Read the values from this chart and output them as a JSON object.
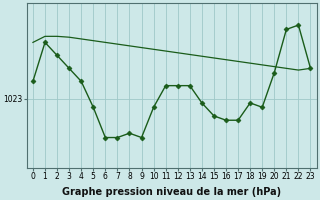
{
  "xlabel": "Graphe pression niveau de la mer (hPa)",
  "ylabel": "",
  "bg_color": "#cde8e8",
  "plot_bg_color": "#cde8e8",
  "grid_color": "#9fc8c8",
  "line_color": "#1a5c1a",
  "line_color2": "#1a5c1a",
  "marker": "D",
  "marker_size": 2.5,
  "x": [
    0,
    1,
    2,
    3,
    4,
    5,
    6,
    7,
    8,
    9,
    10,
    11,
    12,
    13,
    14,
    15,
    16,
    17,
    18,
    19,
    20,
    21,
    22,
    23
  ],
  "y_main": [
    1025.0,
    1029.5,
    1028.0,
    1026.5,
    1025.0,
    1022.0,
    1018.5,
    1018.5,
    1019.0,
    1018.5,
    1022.0,
    1024.5,
    1024.5,
    1024.5,
    1022.5,
    1021.0,
    1020.5,
    1020.5,
    1022.5,
    1022.0,
    1026.0,
    1031.0,
    1031.5,
    1026.5
  ],
  "y_trend": [
    1029.5,
    1030.2,
    1030.2,
    1030.1,
    1029.9,
    1029.7,
    1029.5,
    1029.3,
    1029.1,
    1028.9,
    1028.7,
    1028.5,
    1028.3,
    1028.1,
    1027.9,
    1027.7,
    1027.5,
    1027.3,
    1027.1,
    1026.9,
    1026.7,
    1026.5,
    1026.3,
    1026.5
  ],
  "ylim": [
    1015,
    1034
  ],
  "yticks": [
    1023
  ],
  "xlim": [
    -0.5,
    23.5
  ],
  "xticks": [
    0,
    1,
    2,
    3,
    4,
    5,
    6,
    7,
    8,
    9,
    10,
    11,
    12,
    13,
    14,
    15,
    16,
    17,
    18,
    19,
    20,
    21,
    22,
    23
  ],
  "xlabel_fontsize": 7.0,
  "tick_fontsize": 5.5,
  "ylabel_fontsize": 7
}
